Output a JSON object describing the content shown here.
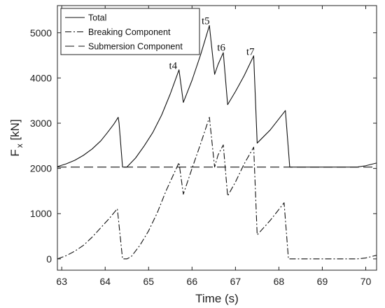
{
  "chart_data": {
    "type": "line",
    "xlabel": "Time (s)",
    "ylabel": "F_x [kN]",
    "ylabel_main": "F",
    "ylabel_sub": "x",
    "ylabel_unit": " [kN]",
    "xlim": [
      62.9,
      70.25
    ],
    "ylim": [
      -250,
      5600
    ],
    "xticks": [
      63,
      64,
      65,
      66,
      67,
      68,
      69,
      70
    ],
    "yticks": [
      0,
      1000,
      2000,
      3000,
      4000,
      5000
    ],
    "grid": false,
    "legend_position": "top-left",
    "series": [
      {
        "name": "Total",
        "style": "solid",
        "points": [
          [
            62.9,
            2040
          ],
          [
            63.1,
            2100
          ],
          [
            63.3,
            2180
          ],
          [
            63.5,
            2290
          ],
          [
            63.7,
            2430
          ],
          [
            63.9,
            2610
          ],
          [
            64.05,
            2790
          ],
          [
            64.2,
            2980
          ],
          [
            64.3,
            3130
          ],
          [
            64.32,
            3000
          ],
          [
            64.4,
            2030
          ],
          [
            64.5,
            2030
          ],
          [
            64.7,
            2230
          ],
          [
            64.9,
            2500
          ],
          [
            65.1,
            2800
          ],
          [
            65.3,
            3180
          ],
          [
            65.5,
            3650
          ],
          [
            65.7,
            4180
          ],
          [
            65.8,
            3460
          ],
          [
            66.0,
            3950
          ],
          [
            66.2,
            4520
          ],
          [
            66.4,
            5160
          ],
          [
            66.52,
            4080
          ],
          [
            66.6,
            4300
          ],
          [
            66.72,
            4560
          ],
          [
            66.82,
            3410
          ],
          [
            67.0,
            3700
          ],
          [
            67.2,
            4050
          ],
          [
            67.42,
            4490
          ],
          [
            67.5,
            2560
          ],
          [
            67.8,
            2850
          ],
          [
            68.15,
            3280
          ],
          [
            68.25,
            2030
          ],
          [
            69.8,
            2030
          ],
          [
            70.0,
            2060
          ],
          [
            70.25,
            2120
          ]
        ]
      },
      {
        "name": "Breaking Component",
        "style": "dashdot",
        "points": [
          [
            62.9,
            0
          ],
          [
            63.1,
            70
          ],
          [
            63.3,
            170
          ],
          [
            63.5,
            300
          ],
          [
            63.7,
            480
          ],
          [
            63.9,
            690
          ],
          [
            64.1,
            900
          ],
          [
            64.28,
            1110
          ],
          [
            64.4,
            0
          ],
          [
            64.5,
            0
          ],
          [
            64.6,
            50
          ],
          [
            64.8,
            300
          ],
          [
            65.0,
            620
          ],
          [
            65.2,
            1020
          ],
          [
            65.4,
            1500
          ],
          [
            65.7,
            2130
          ],
          [
            65.8,
            1430
          ],
          [
            66.0,
            2000
          ],
          [
            66.2,
            2550
          ],
          [
            66.4,
            3130
          ],
          [
            66.52,
            2030
          ],
          [
            66.6,
            2300
          ],
          [
            66.72,
            2520
          ],
          [
            66.82,
            1390
          ],
          [
            67.0,
            1700
          ],
          [
            67.2,
            2100
          ],
          [
            67.42,
            2470
          ],
          [
            67.5,
            530
          ],
          [
            67.8,
            850
          ],
          [
            68.12,
            1240
          ],
          [
            68.22,
            0
          ],
          [
            69.8,
            0
          ],
          [
            70.0,
            20
          ],
          [
            70.25,
            80
          ]
        ]
      },
      {
        "name": "Submersion Component",
        "style": "dashed",
        "points": [
          [
            62.9,
            2030
          ],
          [
            70.25,
            2030
          ]
        ]
      }
    ],
    "annotations": [
      {
        "text": "t4",
        "x": 65.47,
        "y": 4200
      },
      {
        "text": "t5",
        "x": 66.22,
        "y": 5190
      },
      {
        "text": "t6",
        "x": 66.58,
        "y": 4600
      },
      {
        "text": "t7",
        "x": 67.25,
        "y": 4510
      }
    ]
  }
}
